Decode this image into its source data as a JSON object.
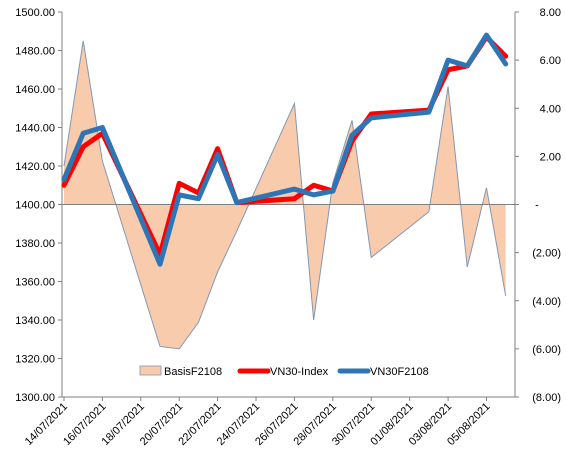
{
  "chart_data": {
    "type": "line",
    "title": "",
    "x": [
      "14/07/2021",
      "15/07/2021",
      "16/07/2021",
      "19/07/2021",
      "20/07/2021",
      "21/07/2021",
      "22/07/2021",
      "23/07/2021",
      "26/07/2021",
      "27/07/2021",
      "28/07/2021",
      "29/07/2021",
      "30/07/2021",
      "02/08/2021",
      "03/08/2021",
      "04/08/2021",
      "05/08/2021",
      "06/08/2021"
    ],
    "x_dates": [
      "2021-07-14",
      "2021-07-15",
      "2021-07-16",
      "2021-07-19",
      "2021-07-20",
      "2021-07-21",
      "2021-07-22",
      "2021-07-23",
      "2021-07-26",
      "2021-07-27",
      "2021-07-28",
      "2021-07-29",
      "2021-07-30",
      "2021-08-02",
      "2021-08-03",
      "2021-08-04",
      "2021-08-05",
      "2021-08-06"
    ],
    "x_tick_labels": [
      "14/07/2021",
      "16/07/2021",
      "18/07/2021",
      "20/07/2021",
      "22/07/2021",
      "24/07/2021",
      "26/07/2021",
      "28/07/2021",
      "30/07/2021",
      "01/08/2021",
      "03/08/2021",
      "05/08/2021"
    ],
    "x_tick_dates": [
      "2021-07-14",
      "2021-07-16",
      "2021-07-18",
      "2021-07-20",
      "2021-07-22",
      "2021-07-24",
      "2021-07-26",
      "2021-07-28",
      "2021-07-30",
      "2021-08-01",
      "2021-08-03",
      "2021-08-05"
    ],
    "x_range": [
      "2021-07-14",
      "2021-08-06"
    ],
    "y_left": {
      "range": [
        1300,
        1500
      ],
      "ticks": [
        "1300.00",
        "1320.00",
        "1340.00",
        "1360.00",
        "1380.00",
        "1400.00",
        "1420.00",
        "1440.00",
        "1460.00",
        "1480.00",
        "1500.00"
      ]
    },
    "y_right": {
      "range": [
        -8,
        8
      ],
      "ticks": [
        "8.00",
        "6.00",
        "4.00",
        "2.00",
        "-",
        "(2.00)",
        "(4.00)",
        "(6.00)",
        "(8.00)"
      ]
    },
    "grid": false,
    "legend_position": "bottom-center",
    "series": [
      {
        "name": "BasisF2108",
        "type": "area",
        "axis": "right",
        "color": "#f8cbad",
        "edge_color": "#8497b0",
        "values": [
          1.6,
          6.8,
          1.8,
          -5.9,
          -6.0,
          -4.9,
          -2.8,
          -1.1,
          4.2,
          -4.8,
          0.9,
          3.5,
          -2.2,
          -0.3,
          4.9,
          -2.6,
          0.7,
          -3.8
        ]
      },
      {
        "name": "VN30-Index",
        "type": "line",
        "axis": "left",
        "color": "#ff0000",
        "values": [
          1410,
          1430,
          1437,
          1374,
          1411,
          1406,
          1429,
          1401,
          1403,
          1410,
          1407,
          1433,
          1447,
          1449,
          1470,
          1472,
          1487,
          1477
        ]
      },
      {
        "name": "VN30F2108",
        "type": "line",
        "axis": "left",
        "color": "#2e75b6",
        "values": [
          1413,
          1437,
          1440,
          1369,
          1405,
          1403,
          1426,
          1401,
          1408,
          1405,
          1407,
          1436,
          1445,
          1448,
          1475,
          1472,
          1488,
          1473
        ]
      }
    ]
  }
}
